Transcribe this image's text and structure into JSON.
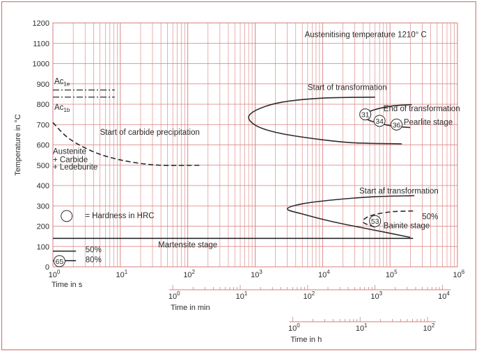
{
  "chart_data": {
    "type": "line",
    "title": "",
    "xlabel": "Time in s",
    "ylabel": "Temperature in °C",
    "x_scale": "log",
    "xlim": [
      1,
      1000000
    ],
    "ylim": [
      0,
      1200
    ],
    "grid": true,
    "y_ticks": [
      "0",
      "100",
      "200",
      "300",
      "400",
      "500",
      "600",
      "700",
      "800",
      "900",
      "1000",
      "1100",
      "1200"
    ],
    "x_ticks": [
      {
        "base": "10",
        "exp": "0"
      },
      {
        "base": "10",
        "exp": "1"
      },
      {
        "base": "10",
        "exp": "2"
      },
      {
        "base": "10",
        "exp": "3"
      },
      {
        "base": "10",
        "exp": "4"
      },
      {
        "base": "10",
        "exp": "5"
      },
      {
        "base": "10",
        "exp": "6"
      }
    ],
    "secondary_axes": [
      {
        "label": "Time in min",
        "ticks": [
          {
            "base": "10",
            "exp": "0"
          },
          {
            "base": "10",
            "exp": "1"
          },
          {
            "base": "10",
            "exp": "2"
          },
          {
            "base": "10",
            "exp": "3"
          },
          {
            "base": "10",
            "exp": "4"
          }
        ]
      },
      {
        "label": "Time in h",
        "ticks": [
          {
            "base": "10",
            "exp": "0"
          },
          {
            "base": "10",
            "exp": "1"
          },
          {
            "base": "10",
            "exp": "2"
          }
        ]
      }
    ],
    "reference_lines": [
      {
        "label_main": "Ac",
        "label_sub": "1e",
        "y": 870,
        "x_range": [
          1,
          10
        ],
        "style": "dash-dot"
      },
      {
        "label_main": "Ac",
        "label_sub": "1b",
        "y": 835,
        "x_range": [
          1,
          10
        ],
        "style": "dash-dot"
      }
    ],
    "series": [
      {
        "name": "Start of carbide precipitation",
        "style": "dashed",
        "points": [
          [
            1,
            710
          ],
          [
            1.6,
            640
          ],
          [
            3,
            585
          ],
          [
            6,
            545
          ],
          [
            15,
            515
          ],
          [
            40,
            500
          ],
          [
            150,
            500
          ]
        ]
      },
      {
        "name": "Pearlite start of transformation",
        "style": "solid",
        "points": [
          [
            60000,
            835
          ],
          [
            10000,
            830
          ],
          [
            2500,
            810
          ],
          [
            1100,
            775
          ],
          [
            800,
            735
          ],
          [
            1100,
            690
          ],
          [
            2500,
            655
          ],
          [
            10000,
            625
          ],
          [
            30000,
            610
          ],
          [
            150000,
            605
          ]
        ]
      },
      {
        "name": "Pearlite end of transformation",
        "style": "solid",
        "points": [
          [
            210000,
            798
          ],
          [
            100000,
            790
          ],
          [
            50000,
            765
          ],
          [
            40000,
            740
          ],
          [
            55000,
            715
          ],
          [
            100000,
            695
          ],
          [
            200000,
            685
          ]
        ]
      },
      {
        "name": "Bainite start of transformation",
        "style": "solid",
        "points": [
          [
            230000,
            350
          ],
          [
            60000,
            345
          ],
          [
            15000,
            330
          ],
          [
            5000,
            310
          ],
          [
            3000,
            285
          ],
          [
            5000,
            260
          ],
          [
            15000,
            220
          ],
          [
            60000,
            180
          ],
          [
            200000,
            145
          ]
        ]
      },
      {
        "name": "Bainite 50%",
        "style": "dashed",
        "points": [
          [
            220000,
            275
          ],
          [
            100000,
            270
          ],
          [
            50000,
            250
          ],
          [
            40000,
            220
          ],
          [
            60000,
            195
          ]
        ]
      },
      {
        "name": "Martensite stage",
        "style": "solid",
        "points": [
          [
            1,
            140
          ],
          [
            220000,
            140
          ]
        ]
      },
      {
        "name": "Martensite 50%",
        "style": "solid",
        "points": [
          [
            1,
            77
          ],
          [
            2.2,
            77
          ]
        ]
      },
      {
        "name": "Martensite 80%",
        "style": "solid",
        "points": [
          [
            1,
            30
          ],
          [
            2.2,
            30
          ]
        ]
      }
    ],
    "hardness_markers": [
      {
        "value": "31",
        "x": 43000,
        "y": 750
      },
      {
        "value": "34",
        "x": 70000,
        "y": 718
      },
      {
        "value": "36",
        "x": 125000,
        "y": 700
      },
      {
        "value": "53",
        "x": 60000,
        "y": 225
      },
      {
        "value": "65",
        "x": 1.25,
        "y": 28
      }
    ],
    "annotations": [
      {
        "text": "Austenitising temperature 1210° C",
        "x": 350000,
        "y": 1130,
        "anchor": "end"
      },
      {
        "text": "Start of transformation",
        "x": 6000,
        "y": 870,
        "anchor": "start"
      },
      {
        "text": "End of transformation",
        "x": 80000,
        "y": 765,
        "anchor": "start"
      },
      {
        "text": "Pearlite stage",
        "x": 160000,
        "y": 700,
        "anchor": "start"
      },
      {
        "text": "Start of carbide precipitation",
        "x": 5,
        "y": 650,
        "anchor": "start"
      },
      {
        "text": "Austenite",
        "x": 1,
        "y": 555,
        "anchor": "start"
      },
      {
        "text": "+ Carbide",
        "x": 1,
        "y": 515,
        "anchor": "start"
      },
      {
        "text": "+ Ledeburite",
        "x": 1,
        "y": 478,
        "anchor": "start"
      },
      {
        "text": "Start af transformation",
        "x": 35000,
        "y": 360,
        "anchor": "start"
      },
      {
        "text": "50%",
        "x": 300000,
        "y": 235,
        "anchor": "start"
      },
      {
        "text": "Bainite stage",
        "x": 80000,
        "y": 190,
        "anchor": "start"
      },
      {
        "text": "= Hardness in HRC",
        "x": 3,
        "y": 240,
        "anchor": "start"
      },
      {
        "text": "Martensite stage",
        "x": 100,
        "y": 95,
        "anchor": "middle"
      },
      {
        "text": "50%",
        "x": 4,
        "y": 72,
        "anchor": "middle"
      },
      {
        "text": "80%",
        "x": 4,
        "y": 22,
        "anchor": "middle"
      }
    ],
    "legend": {
      "marker": "circle",
      "x": 1.6,
      "y": 250
    }
  },
  "colors": {
    "grid": "#d77b7b",
    "curve": "#2b2b2b",
    "frame": "#c96a6a"
  }
}
